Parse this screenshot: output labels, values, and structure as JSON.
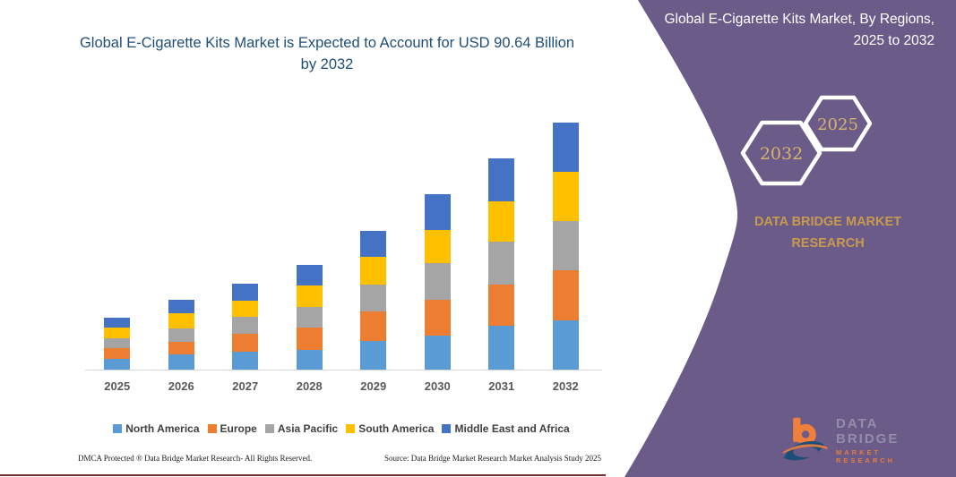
{
  "chart": {
    "title": "Global E-Cigarette Kits Market is Expected to Account for USD 90.64 Billion by 2032"
  },
  "chart_data": {
    "type": "bar",
    "stacked": true,
    "title": "Global E-Cigarette Kits Market is Expected to Account for USD 90.64 Billion by 2032",
    "unit": "USD Billion",
    "categories": [
      "2025",
      "2026",
      "2027",
      "2028",
      "2029",
      "2030",
      "2031",
      "2032"
    ],
    "series": [
      {
        "name": "North America",
        "color": "#5b9bd5",
        "values": [
          4.0,
          5.5,
          6.5,
          7.3,
          10.6,
          12.5,
          16.0,
          18.0
        ]
      },
      {
        "name": "Europe",
        "color": "#ed7d31",
        "values": [
          3.8,
          4.7,
          6.5,
          8.2,
          10.7,
          13.1,
          15.3,
          18.6
        ]
      },
      {
        "name": "Asia Pacific",
        "color": "#a5a5a5",
        "values": [
          3.8,
          4.9,
          6.3,
          7.6,
          9.8,
          13.6,
          15.8,
          18.0
        ]
      },
      {
        "name": "South America",
        "color": "#ffc000",
        "values": [
          3.9,
          5.5,
          6.0,
          7.8,
          10.3,
          12.2,
          14.7,
          17.9
        ]
      },
      {
        "name": "Middle East and Africa",
        "color": "#4472c4",
        "values": [
          3.5,
          5.2,
          6.2,
          7.5,
          9.6,
          13.1,
          15.8,
          18.14
        ]
      }
    ],
    "totals": [
      19.0,
      25.8,
      31.5,
      38.4,
      51.0,
      64.5,
      77.6,
      90.64
    ],
    "ylim": [
      0,
      95
    ],
    "grid": false,
    "legend_position": "bottom",
    "axis_visible": "x-only"
  },
  "footer": {
    "left": "DMCA Protected ® Data Bridge Market Research-  All Rights Reserved.",
    "right": "Source: Data Bridge Market Research  Market Analysis Study 2025"
  },
  "panel": {
    "bg_color": "#6a5b89",
    "title": "Global E-Cigarette Kits Market, By Regions, 2025 to 2032",
    "hexagon_back_year": "2032",
    "hexagon_front_year": "2025",
    "brand": "DATA BRIDGE MARKET RESEARCH",
    "logo_line1": "DATA BRIDGE",
    "logo_line2": "MARKET RESEARCH",
    "accent_gold": "#d9b36c"
  }
}
